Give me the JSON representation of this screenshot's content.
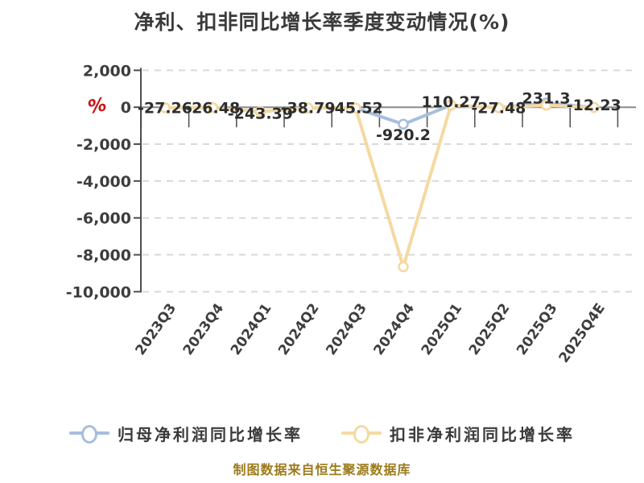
{
  "source_note": "制图数据来自恒生聚源数据库",
  "chart_data": {
    "type": "line",
    "title": "净利、扣非同比增长率季度变动情况(%)",
    "categories": [
      "2023Q3",
      "2023Q4",
      "2024Q1",
      "2024Q2",
      "2024Q3",
      "2024Q4",
      "2025Q1",
      "2025Q2",
      "2025Q3",
      "2025Q4E"
    ],
    "series": [
      {
        "name": "归母净利润同比增长率",
        "color": "#a6bedd",
        "values": [
          -27.26,
          -26.48,
          -243.39,
          -38.79,
          -45.52,
          -920.2,
          110.27,
          -27.48,
          231.3,
          -12.23
        ],
        "labels": [
          "-27.26",
          "-26.48",
          "-243.39",
          "-38.79",
          "-45.52",
          "-920.2",
          "110.27",
          "-27.48",
          "231.3",
          "-12.23"
        ]
      },
      {
        "name": "扣非净利润同比增长率",
        "color": "#f5d9a0",
        "values": [
          -27.26,
          -26.48,
          -243.39,
          -38.79,
          -45.52,
          -8650,
          110.27,
          -27.48,
          110,
          -12.23
        ],
        "values_note": "no data labels shown for this series; values estimated from pixel positions (coincides with first series except 2024Q4 ≈ -8,650)"
      }
    ],
    "y_ticks": [
      2000,
      0,
      -2000,
      -4000,
      -6000,
      -8000,
      -10000
    ],
    "y_tick_labels": [
      "2,000",
      "0",
      "-2,000",
      "-4,000",
      "-6,000",
      "-8,000",
      "-10,000"
    ],
    "ylim": [
      -10000,
      2000
    ],
    "axis_unit_marker": {
      "text": "%",
      "color": "#cc1111"
    },
    "grid": "dashed horizontal gridlines, solid zero line",
    "x_tick_rotation_deg": -55,
    "legend_position": "bottom"
  }
}
